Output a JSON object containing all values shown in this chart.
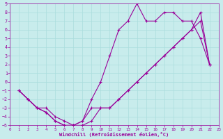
{
  "xlabel": "Windchill (Refroidissement éolien,°C)",
  "xlim": [
    0,
    23
  ],
  "ylim": [
    -5,
    9
  ],
  "xticks": [
    0,
    1,
    2,
    3,
    4,
    5,
    6,
    7,
    8,
    9,
    10,
    11,
    12,
    13,
    14,
    15,
    16,
    17,
    18,
    19,
    20,
    21,
    22,
    23
  ],
  "yticks": [
    -5,
    -4,
    -3,
    -2,
    -1,
    0,
    1,
    2,
    3,
    4,
    5,
    6,
    7,
    8,
    9
  ],
  "bg_color": "#c8ecec",
  "line_color": "#990099",
  "grid_color": "#aadddd",
  "line1_x": [
    1,
    2,
    3,
    4,
    5,
    6,
    7,
    8,
    9,
    10,
    11,
    12,
    13,
    14,
    15,
    16,
    17,
    18,
    19,
    20,
    21,
    22
  ],
  "line1_y": [
    -1,
    -2,
    -3,
    -3.5,
    -4.5,
    -5,
    -5,
    -4.5,
    -2,
    0,
    3,
    6,
    7,
    9,
    7,
    7,
    8,
    8,
    7,
    7,
    5,
    2
  ],
  "line2_x": [
    1,
    2,
    3,
    4,
    5,
    6,
    7,
    8,
    9,
    10,
    11,
    12,
    13,
    14,
    15,
    16,
    17,
    18,
    19,
    20,
    21,
    22
  ],
  "line2_y": [
    -1,
    -2,
    -3,
    -3.5,
    -4.5,
    -5,
    -5,
    -4.5,
    -3,
    -3,
    -3,
    -2,
    -1,
    0,
    1,
    2,
    3,
    4,
    5,
    6,
    7,
    2
  ],
  "line3_x": [
    1,
    2,
    3,
    4,
    5,
    6,
    7,
    8,
    9,
    10,
    11,
    12,
    13,
    14,
    15,
    16,
    17,
    18,
    19,
    20,
    21,
    22
  ],
  "line3_y": [
    -1,
    -2,
    -3,
    -3,
    -4,
    -4.5,
    -5,
    -5,
    -4.5,
    -3,
    -3,
    -2,
    -1,
    0,
    1,
    2,
    3,
    4,
    5,
    6,
    8,
    2
  ],
  "marker": "+",
  "markersize": 3,
  "linewidth": 0.8
}
